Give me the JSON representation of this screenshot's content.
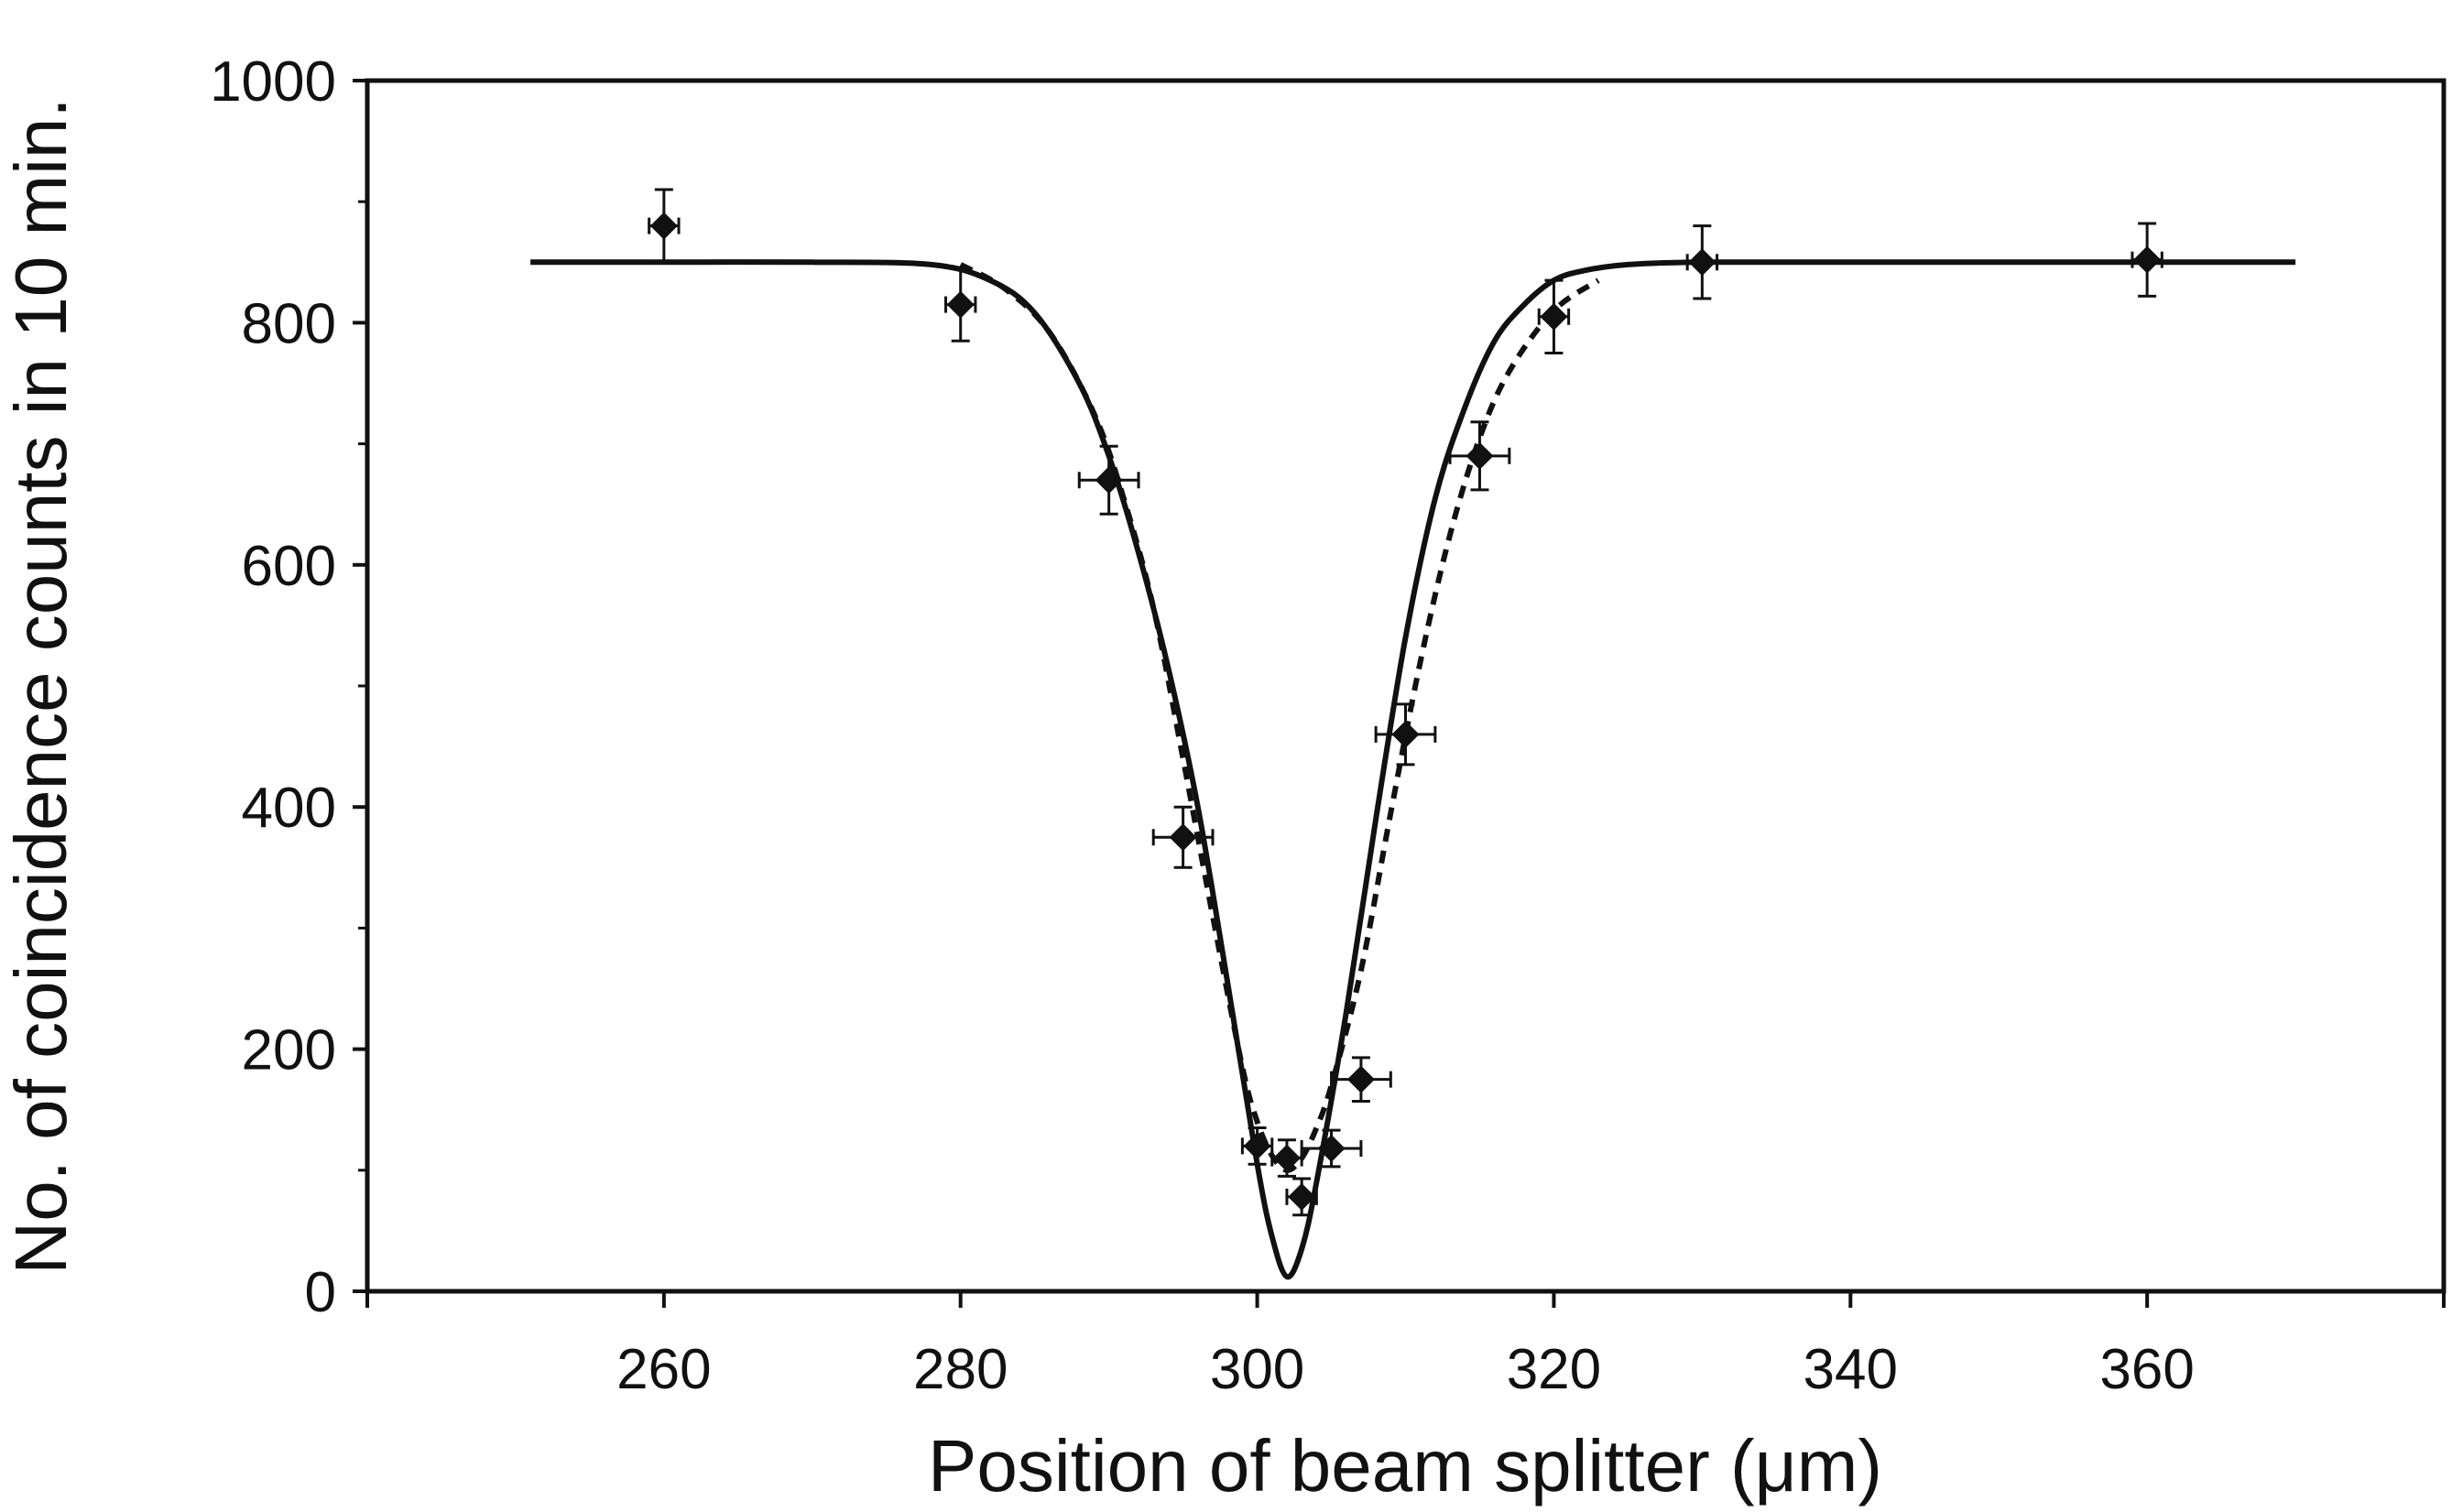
{
  "chart_data": {
    "type": "scatter",
    "title": "",
    "xlabel": "Position of beam splitter (μm)",
    "ylabel": "No. of coincidence counts in 10 min.",
    "xlim": [
      240,
      380
    ],
    "ylim": [
      0,
      1000
    ],
    "x_ticks": [
      260,
      280,
      300,
      320,
      340,
      360
    ],
    "y_ticks": [
      0,
      200,
      400,
      600,
      800,
      1000
    ],
    "grid": false,
    "series": [
      {
        "style": "markers-with-error-bars",
        "points": [
          {
            "x": 260,
            "y": 880,
            "xerr": 1.0,
            "yerr": 30
          },
          {
            "x": 280,
            "y": 815,
            "xerr": 1.0,
            "yerr": 30
          },
          {
            "x": 290,
            "y": 670,
            "xerr": 2.0,
            "yerr": 28
          },
          {
            "x": 295,
            "y": 375,
            "xerr": 2.0,
            "yerr": 25
          },
          {
            "x": 300,
            "y": 120,
            "xerr": 1.0,
            "yerr": 15
          },
          {
            "x": 302,
            "y": 110,
            "xerr": 1.0,
            "yerr": 15
          },
          {
            "x": 303,
            "y": 78,
            "xerr": 1.0,
            "yerr": 15
          },
          {
            "x": 305,
            "y": 118,
            "xerr": 2.0,
            "yerr": 15
          },
          {
            "x": 307,
            "y": 175,
            "xerr": 2.0,
            "yerr": 18
          },
          {
            "x": 310,
            "y": 460,
            "xerr": 2.0,
            "yerr": 25
          },
          {
            "x": 315,
            "y": 690,
            "xerr": 2.0,
            "yerr": 28
          },
          {
            "x": 320,
            "y": 805,
            "xerr": 1.0,
            "yerr": 30
          },
          {
            "x": 330,
            "y": 850,
            "xerr": 1.0,
            "yerr": 30
          },
          {
            "x": 360,
            "y": 852,
            "xerr": 1.0,
            "yerr": 30
          }
        ]
      },
      {
        "style": "solid-line",
        "x": [
          251,
          260,
          270,
          278,
          282,
          285,
          288,
          290,
          292,
          294,
          296,
          298,
          300,
          301,
          302,
          303,
          304,
          306,
          308,
          310,
          312,
          314,
          316,
          318,
          320,
          322,
          325,
          330,
          340,
          360,
          370
        ],
        "y": [
          850,
          850,
          850,
          848,
          835,
          808,
          750,
          690,
          610,
          515,
          400,
          255,
          105,
          45,
          12,
          35,
          90,
          230,
          390,
          540,
          655,
          730,
          785,
          815,
          835,
          843,
          848,
          850,
          850,
          850,
          850
        ]
      },
      {
        "style": "dashed-line",
        "x": [
          280,
          283,
          286,
          289,
          291,
          293,
          295,
          297,
          299,
          300,
          301,
          302,
          303,
          304,
          305,
          307,
          309,
          311,
          313,
          315,
          317,
          320,
          323
        ],
        "y": [
          848,
          828,
          792,
          725,
          655,
          565,
          440,
          310,
          185,
          140,
          112,
          100,
          110,
          135,
          170,
          265,
          395,
          520,
          625,
          705,
          760,
          810,
          835
        ]
      }
    ]
  }
}
